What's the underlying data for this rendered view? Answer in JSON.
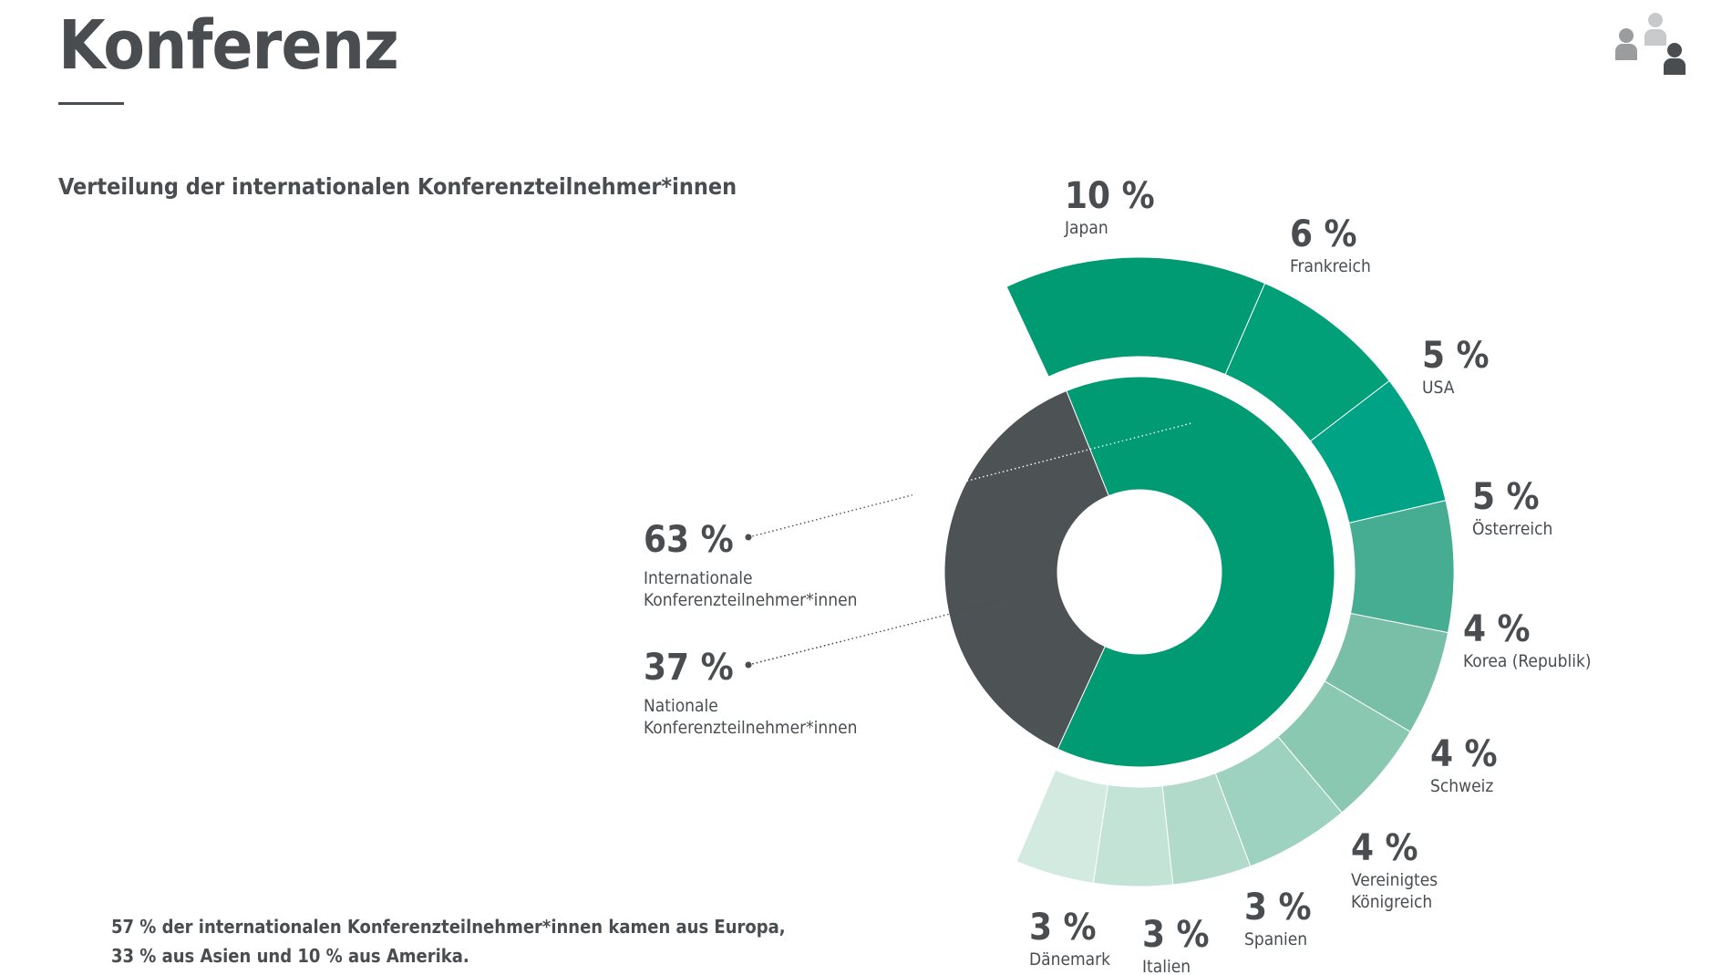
{
  "header": {
    "title": "Konferenz"
  },
  "icons": {
    "people": "people-group-icon"
  },
  "colors": {
    "dark": "#4a4d50",
    "inner_international": "#009a73",
    "inner_national": "#4d5255",
    "outer": [
      "#009a73",
      "#02a078",
      "#00a386",
      "#46ad93",
      "#79bea6",
      "#8ac8b2",
      "#9ed2c0",
      "#b1dacb",
      "#c3e3d7",
      "#d3eae1"
    ]
  },
  "chart_data": {
    "type": "donut",
    "title": "Verteilung der internationalen Konferenzteilnehmer*innen",
    "inner": {
      "slices": [
        {
          "label": "Internationale Konferenzteilnehmer*innen",
          "label_lines": [
            "Internationale",
            "Konferenzteilnehmer*innen"
          ],
          "value": 63,
          "value_text": "63 %"
        },
        {
          "label": "Nationale Konferenzteilnehmer*innen",
          "label_lines": [
            "Nationale",
            "Konferenzteilnehmer*innen"
          ],
          "value": 37,
          "value_text": "37 %"
        }
      ]
    },
    "outer": {
      "slices": [
        {
          "label": "Japan",
          "label_lines": [
            "Japan"
          ],
          "value": 10,
          "value_text": "10 %"
        },
        {
          "label": "Frankreich",
          "label_lines": [
            "Frankreich"
          ],
          "value": 6,
          "value_text": "6 %"
        },
        {
          "label": "USA",
          "label_lines": [
            "USA"
          ],
          "value": 5,
          "value_text": "5 %"
        },
        {
          "label": "Österreich",
          "label_lines": [
            "Österreich"
          ],
          "value": 5,
          "value_text": "5 %"
        },
        {
          "label": "Korea (Republik)",
          "label_lines": [
            "Korea (Republik)"
          ],
          "value": 4,
          "value_text": "4 %"
        },
        {
          "label": "Schweiz",
          "label_lines": [
            "Schweiz"
          ],
          "value": 4,
          "value_text": "4 %"
        },
        {
          "label": "Vereinigtes Königreich",
          "label_lines": [
            "Vereinigtes",
            "Königreich"
          ],
          "value": 4,
          "value_text": "4 %"
        },
        {
          "label": "Spanien",
          "label_lines": [
            "Spanien"
          ],
          "value": 3,
          "value_text": "3 %"
        },
        {
          "label": "Italien",
          "label_lines": [
            "Italien"
          ],
          "value": 3,
          "value_text": "3 %"
        },
        {
          "label": "Dänemark",
          "label_lines": [
            "Dänemark"
          ],
          "value": 3,
          "value_text": "3 %"
        }
      ]
    }
  },
  "footnote": {
    "line1": "57 % der internationalen Konferenzteilnehmer*innen kamen aus Europa,",
    "line2": "33 % aus Asien und 10 % aus Amerika."
  }
}
